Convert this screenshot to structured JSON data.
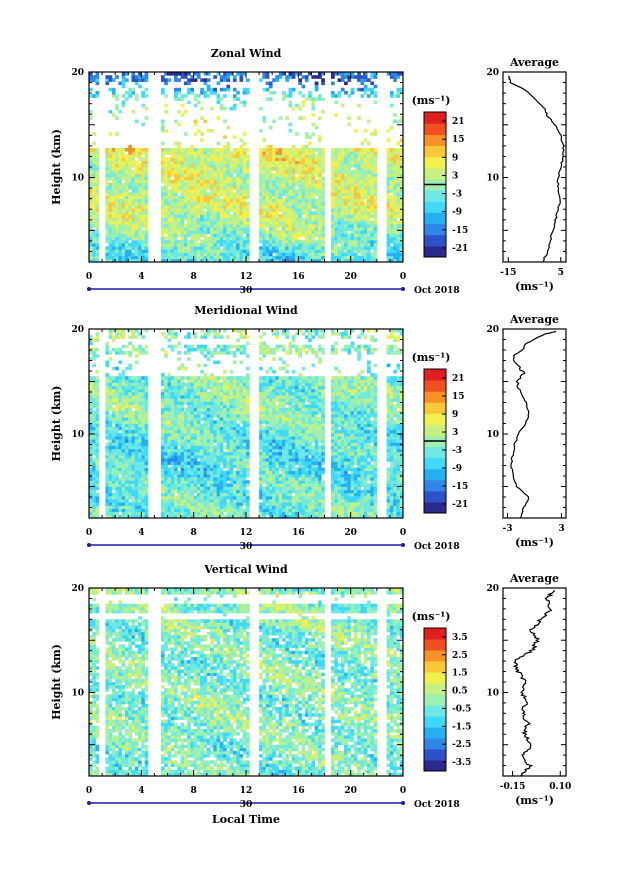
{
  "figure": {
    "xlabel": "Local Time",
    "time_ticks": [
      "0",
      "4",
      "8",
      "12",
      "16",
      "20",
      "0"
    ],
    "height_ticks": [
      "20",
      "10"
    ],
    "date_day": "30",
    "date_label": "Oct 2018",
    "colorbar_unit": "(ms⁻¹)",
    "avg_unit": "(ms⁻¹)",
    "ylabel": "Height (km)",
    "colormap": [
      "#2a2a8c",
      "#2d52c8",
      "#2f86e6",
      "#25b0f2",
      "#3fd8f8",
      "#6ee8e0",
      "#9df0b0",
      "#c8f080",
      "#f0f050",
      "#f8c838",
      "#f89028",
      "#f05020",
      "#e02020"
    ]
  },
  "chart_data": [
    {
      "type": "heatmap",
      "title": "Zonal Wind",
      "x_range_hours": [
        0,
        24
      ],
      "y_range_km": [
        2,
        20
      ],
      "colorbar_ticks": [
        "21",
        "15",
        "9",
        "3",
        "-3",
        "-9",
        "-15",
        "-21"
      ],
      "colorbar_range": [
        -24,
        24
      ],
      "contour_level": 0,
      "data_gaps_hours": [
        [
          0.8,
          1.1
        ],
        [
          4.7,
          5.3
        ],
        [
          12.4,
          12.8
        ],
        [
          18.0,
          18.3
        ],
        [
          22.2,
          22.6
        ]
      ],
      "profile_by_height_km": [
        {
          "h": 3,
          "v": -4
        },
        {
          "h": 5,
          "v": 1
        },
        {
          "h": 7,
          "v": 4
        },
        {
          "h": 9,
          "v": 3
        },
        {
          "h": 11,
          "v": 5
        },
        {
          "h": 13,
          "v": 6
        },
        {
          "h": 15,
          "v": 2
        },
        {
          "h": 17,
          "v": 0
        },
        {
          "h": 19,
          "v": -16
        }
      ],
      "average": {
        "title": "Average",
        "x_ticks": [
          "-15",
          "5"
        ],
        "x_range": [
          -17,
          7
        ],
        "ylim": [
          2,
          20
        ],
        "profile": [
          {
            "h": 2.0,
            "v": -2
          },
          {
            "h": 3.0,
            "v": 0
          },
          {
            "h": 4.0,
            "v": 1
          },
          {
            "h": 5.0,
            "v": 2
          },
          {
            "h": 6.0,
            "v": 3
          },
          {
            "h": 7.0,
            "v": 4
          },
          {
            "h": 8.0,
            "v": 5
          },
          {
            "h": 9.0,
            "v": 4
          },
          {
            "h": 10.0,
            "v": 4
          },
          {
            "h": 11.0,
            "v": 5
          },
          {
            "h": 12.0,
            "v": 6
          },
          {
            "h": 13.0,
            "v": 6
          },
          {
            "h": 14.0,
            "v": 5
          },
          {
            "h": 15.0,
            "v": 3
          },
          {
            "h": 15.8,
            "v": 0
          },
          {
            "h": 16.5,
            "v": -1
          },
          {
            "h": 17.5,
            "v": -5
          },
          {
            "h": 18.2,
            "v": -8
          },
          {
            "h": 19.0,
            "v": -14
          },
          {
            "h": 19.6,
            "v": -15
          }
        ]
      }
    },
    {
      "type": "heatmap",
      "title": "Meridional Wind",
      "x_range_hours": [
        0,
        24
      ],
      "y_range_km": [
        2,
        20
      ],
      "colorbar_ticks": [
        "21",
        "15",
        "9",
        "3",
        "-3",
        "-9",
        "-15",
        "-21"
      ],
      "colorbar_range": [
        -24,
        24
      ],
      "contour_level": 0,
      "data_gaps_hours": [
        [
          0.8,
          1.1
        ],
        [
          4.7,
          5.3
        ],
        [
          12.4,
          12.8
        ],
        [
          18.0,
          18.3
        ],
        [
          22.2,
          22.6
        ]
      ],
      "profile_by_height_km": [
        {
          "h": 3,
          "v": -3
        },
        {
          "h": 5,
          "v": -4
        },
        {
          "h": 7,
          "v": -6
        },
        {
          "h": 9,
          "v": -5
        },
        {
          "h": 11,
          "v": -2
        },
        {
          "h": 13,
          "v": -1
        },
        {
          "h": 15,
          "v": -2
        },
        {
          "h": 17,
          "v": -1
        },
        {
          "h": 19,
          "v": 0
        }
      ],
      "average": {
        "title": "Average",
        "x_ticks": [
          "-3",
          "3"
        ],
        "x_range": [
          -3.5,
          3.5
        ],
        "ylim": [
          2,
          20
        ],
        "profile": [
          {
            "h": 2.0,
            "v": -1.5
          },
          {
            "h": 3.0,
            "v": -1.2
          },
          {
            "h": 4.0,
            "v": -0.6
          },
          {
            "h": 5.0,
            "v": -2.0
          },
          {
            "h": 6.0,
            "v": -2.3
          },
          {
            "h": 7.0,
            "v": -2.6
          },
          {
            "h": 8.0,
            "v": -2.4
          },
          {
            "h": 9.0,
            "v": -2.2
          },
          {
            "h": 10.0,
            "v": -1.8
          },
          {
            "h": 11.0,
            "v": -1.0
          },
          {
            "h": 12.0,
            "v": -0.6
          },
          {
            "h": 13.0,
            "v": -0.9
          },
          {
            "h": 14.0,
            "v": -1.6
          },
          {
            "h": 15.0,
            "v": -1.9
          },
          {
            "h": 15.8,
            "v": -1.2
          },
          {
            "h": 16.5,
            "v": -1.8
          },
          {
            "h": 17.3,
            "v": -2.4
          },
          {
            "h": 18.0,
            "v": -1.5
          },
          {
            "h": 18.8,
            "v": -0.5
          },
          {
            "h": 19.5,
            "v": 1.2
          },
          {
            "h": 19.8,
            "v": 2.4
          }
        ]
      }
    },
    {
      "type": "heatmap",
      "title": "Vertical Wind",
      "x_range_hours": [
        0,
        24
      ],
      "y_range_km": [
        2,
        20
      ],
      "colorbar_ticks": [
        "3.5",
        "2.5",
        "1.5",
        "0.5",
        "-0.5",
        "-1.5",
        "-2.5",
        "-3.5"
      ],
      "colorbar_range": [
        -4,
        4
      ],
      "data_gaps_hours": [
        [
          0.8,
          1.1
        ],
        [
          4.7,
          5.3
        ],
        [
          12.4,
          12.8
        ],
        [
          18.0,
          18.3
        ],
        [
          22.2,
          22.6
        ]
      ],
      "profile_by_height_km": [
        {
          "h": 3,
          "v": -0.4
        },
        {
          "h": 5,
          "v": -0.3
        },
        {
          "h": 7,
          "v": -0.2
        },
        {
          "h": 9,
          "v": -0.3
        },
        {
          "h": 11,
          "v": -0.2
        },
        {
          "h": 13,
          "v": -0.4
        },
        {
          "h": 15,
          "v": -0.3
        },
        {
          "h": 17,
          "v": -0.2
        },
        {
          "h": 19,
          "v": -0.1
        }
      ],
      "average": {
        "title": "Average",
        "x_ticks": [
          "-0.15",
          "0.10"
        ],
        "x_range": [
          -0.2,
          0.13
        ],
        "ylim": [
          2,
          20
        ],
        "profile": [
          {
            "h": 2.0,
            "v": -0.1
          },
          {
            "h": 3.0,
            "v": -0.06
          },
          {
            "h": 4.0,
            "v": -0.1
          },
          {
            "h": 5.0,
            "v": -0.05
          },
          {
            "h": 6.0,
            "v": -0.09
          },
          {
            "h": 7.0,
            "v": -0.07
          },
          {
            "h": 8.0,
            "v": -0.1
          },
          {
            "h": 9.0,
            "v": -0.08
          },
          {
            "h": 10.0,
            "v": -0.1
          },
          {
            "h": 11.0,
            "v": -0.08
          },
          {
            "h": 12.0,
            "v": -0.12
          },
          {
            "h": 13.0,
            "v": -0.14
          },
          {
            "h": 14.0,
            "v": -0.05
          },
          {
            "h": 15.0,
            "v": -0.02
          },
          {
            "h": 16.0,
            "v": -0.05
          },
          {
            "h": 17.0,
            "v": 0.0
          },
          {
            "h": 18.0,
            "v": 0.05
          },
          {
            "h": 19.0,
            "v": 0.03
          },
          {
            "h": 19.8,
            "v": 0.07
          }
        ]
      }
    }
  ]
}
